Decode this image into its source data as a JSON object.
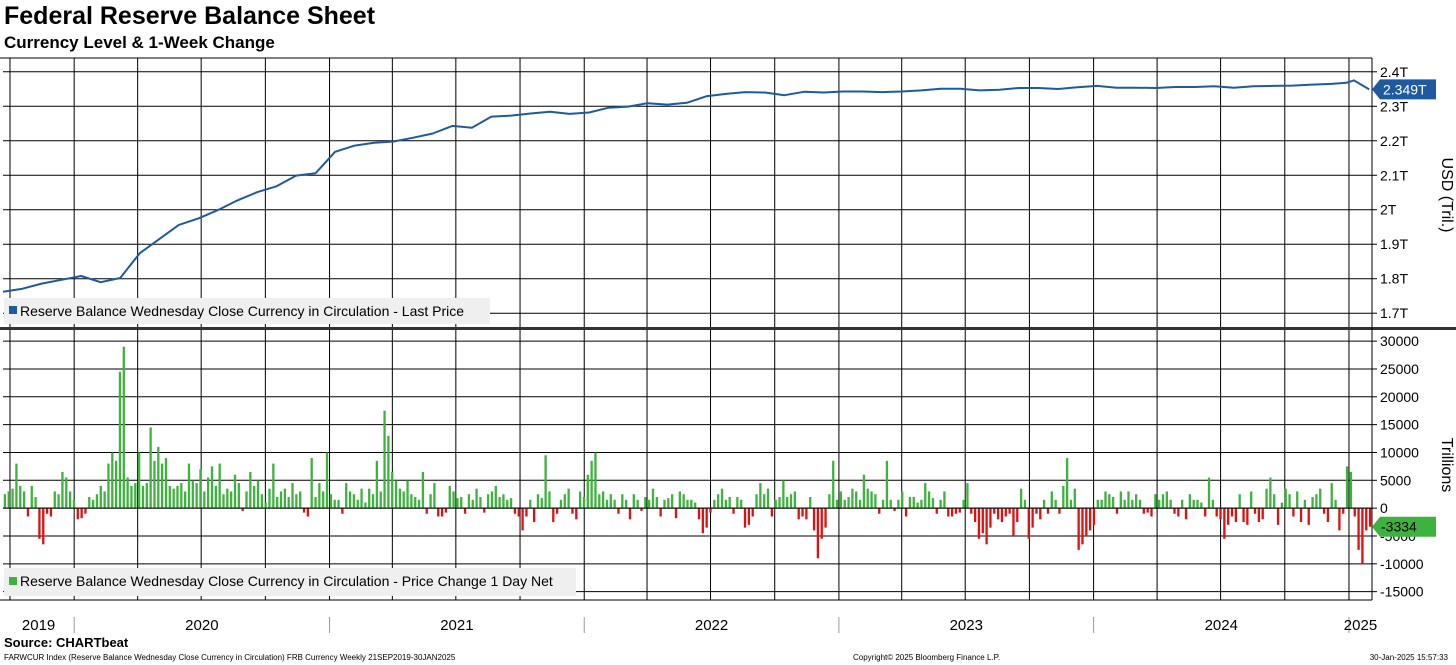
{
  "title": "Federal Reserve Balance Sheet",
  "subtitle": "Currency Level & 1-Week Change",
  "source": "Source: CHARTbeat",
  "footer": {
    "left": "FARWCUR Index (Reserve Balance Wednesday Close Currency in Circulation) FRB Currency  Weekly 21SEP2019-30JAN2025",
    "center": "Copyright© 2025 Bloomberg Finance L.P.",
    "right": "30-Jan-2025 15:57:33"
  },
  "colors": {
    "line": "#1f5aa0",
    "positive": "#3db33d",
    "negative": "#e01010",
    "grid": "#000000",
    "legend_bg": "#efefef"
  },
  "chart_data": [
    {
      "type": "line",
      "ylabel": "USD (Tril.)",
      "ylim": [
        1.66,
        2.44
      ],
      "yticks": [
        1.7,
        1.8,
        1.9,
        2.0,
        2.1,
        2.2,
        2.3,
        2.4
      ],
      "ytick_labels": [
        "1.7T",
        "1.8T",
        "1.9T",
        "2T",
        "2.1T",
        "2.2T",
        "2.3T",
        "2.4T"
      ],
      "last_value_label": "2.349T",
      "legend_position": "bottom-left",
      "grid": true,
      "series": [
        {
          "name": "Reserve Balance Wednesday Close Currency in Circulation - Last Price",
          "x": [
            "2019-09-21",
            "2019-10-19",
            "2019-11-16",
            "2019-12-14",
            "2020-01-11",
            "2020-02-08",
            "2020-03-07",
            "2020-04-04",
            "2020-05-02",
            "2020-05-30",
            "2020-06-27",
            "2020-07-25",
            "2020-08-22",
            "2020-09-19",
            "2020-10-17",
            "2020-11-14",
            "2020-12-12",
            "2021-01-09",
            "2021-02-06",
            "2021-03-06",
            "2021-04-03",
            "2021-05-01",
            "2021-05-29",
            "2021-06-26",
            "2021-07-24",
            "2021-08-21",
            "2021-09-18",
            "2021-10-16",
            "2021-11-13",
            "2021-12-11",
            "2022-01-08",
            "2022-02-05",
            "2022-03-05",
            "2022-04-02",
            "2022-04-30",
            "2022-05-28",
            "2022-06-25",
            "2022-07-23",
            "2022-08-20",
            "2022-09-17",
            "2022-10-15",
            "2022-11-12",
            "2022-12-10",
            "2023-01-07",
            "2023-02-04",
            "2023-03-04",
            "2023-04-01",
            "2023-04-29",
            "2023-05-27",
            "2023-06-24",
            "2023-07-22",
            "2023-08-19",
            "2023-09-16",
            "2023-10-14",
            "2023-11-11",
            "2023-12-09",
            "2024-01-06",
            "2024-02-03",
            "2024-03-02",
            "2024-03-30",
            "2024-04-27",
            "2024-05-25",
            "2024-06-22",
            "2024-07-20",
            "2024-08-17",
            "2024-09-14",
            "2024-10-12",
            "2024-11-09",
            "2024-12-07",
            "2024-12-28",
            "2025-01-08",
            "2025-01-30"
          ],
          "values": [
            1.762,
            1.771,
            1.786,
            1.797,
            1.808,
            1.79,
            1.802,
            1.874,
            1.915,
            1.956,
            1.975,
            1.999,
            2.027,
            2.051,
            2.068,
            2.099,
            2.106,
            2.168,
            2.186,
            2.194,
            2.198,
            2.209,
            2.221,
            2.243,
            2.238,
            2.27,
            2.273,
            2.279,
            2.284,
            2.278,
            2.282,
            2.296,
            2.299,
            2.309,
            2.305,
            2.31,
            2.329,
            2.336,
            2.341,
            2.34,
            2.332,
            2.342,
            2.34,
            2.343,
            2.343,
            2.341,
            2.343,
            2.346,
            2.351,
            2.351,
            2.346,
            2.348,
            2.353,
            2.353,
            2.35,
            2.355,
            2.359,
            2.354,
            2.354,
            2.353,
            2.356,
            2.356,
            2.358,
            2.354,
            2.358,
            2.359,
            2.36,
            2.363,
            2.365,
            2.368,
            2.375,
            2.349
          ]
        }
      ]
    },
    {
      "type": "bar",
      "ylabel": "Trillions",
      "ylim": [
        -16500,
        32000
      ],
      "yticks": [
        -15000,
        -10000,
        -5000,
        0,
        5000,
        10000,
        15000,
        20000,
        25000,
        30000
      ],
      "ytick_labels": [
        "-15000",
        "-10000",
        "-5000",
        "0",
        "5000",
        "10000",
        "15000",
        "20000",
        "25000",
        "30000"
      ],
      "last_value_label": "-3334",
      "legend_position": "bottom-left",
      "grid": true,
      "series": [
        {
          "name": "Reserve Balance Wednesday Close Currency in Circulation - Price Change 1 Day Net",
          "x_start": "2019-09-21",
          "frequency": "weekly",
          "values": [
            2500,
            3000,
            3500,
            8000,
            4000,
            3000,
            -1500,
            4000,
            2000,
            -5500,
            -6500,
            -1000,
            -1500,
            3000,
            2500,
            6500,
            5500,
            3000,
            1500,
            -2000,
            -1800,
            -1000,
            2000,
            1500,
            2500,
            4000,
            3000,
            8000,
            10000,
            8500,
            24500,
            29000,
            5500,
            4000,
            4500,
            10000,
            4000,
            4500,
            14500,
            8500,
            11000,
            8000,
            9000,
            4000,
            3500,
            4000,
            4500,
            3000,
            8000,
            5000,
            4500,
            7000,
            3000,
            5500,
            7500,
            4000,
            8000,
            2500,
            3500,
            3000,
            6000,
            4500,
            -500,
            3000,
            6500,
            4000,
            5000,
            2500,
            1000,
            3500,
            8000,
            2000,
            3000,
            3500,
            2000,
            4500,
            2500,
            3000,
            -800,
            -1500,
            9000,
            2000,
            4500,
            3000,
            10000,
            2500,
            1500,
            1500,
            -1000,
            4500,
            3000,
            2500,
            1500,
            3500,
            1000,
            3500,
            2500,
            8500,
            3000,
            17500,
            13000,
            6500,
            5000,
            3500,
            3000,
            5000,
            2500,
            2000,
            1500,
            6500,
            -1000,
            2500,
            4500,
            -1500,
            -1500,
            -800,
            4000,
            3000,
            1800,
            2000,
            -1000,
            2500,
            1500,
            3500,
            2000,
            -800,
            2500,
            3000,
            4000,
            2000,
            2500,
            1500,
            1800,
            -1000,
            -1500,
            -4000,
            -1500,
            1500,
            -2500,
            2500,
            1800,
            9500,
            3000,
            -2500,
            -1000,
            1500,
            2500,
            3500,
            -1000,
            -2000,
            3000,
            2000,
            6000,
            8500,
            10000,
            2500,
            3000,
            1500,
            2500,
            1500,
            -1000,
            2500,
            1500,
            -2000,
            2500,
            1500,
            -500,
            2000,
            1500,
            3500,
            2000,
            -1500,
            1500,
            1800,
            2500,
            -1800,
            3000,
            2500,
            1500,
            1500,
            1000,
            -2000,
            -4500,
            -3500,
            -800,
            1500,
            2500,
            3500,
            1500,
            2000,
            -1000,
            2000,
            1500,
            -3500,
            -3000,
            -1500,
            2500,
            4500,
            2500,
            3500,
            -1500,
            1500,
            2000,
            5000,
            2000,
            2500,
            3000,
            -2000,
            -1500,
            -2000,
            2000,
            -4000,
            -9000,
            -5500,
            -3500,
            2500,
            8500,
            1500,
            3000,
            1500,
            2000,
            3500,
            3000,
            1500,
            6000,
            3500,
            3000,
            2500,
            -1000,
            1500,
            8500,
            1500,
            -500,
            1500,
            3000,
            -1500,
            2000,
            2000,
            1000,
            1500,
            4500,
            3000,
            1800,
            -1000,
            1500,
            3000,
            -1500,
            -1500,
            -1000,
            -800,
            1500,
            4500,
            -1000,
            -2500,
            -5500,
            -4500,
            -6500,
            -3500,
            -1000,
            -2000,
            -2500,
            -1500,
            -1000,
            -5000,
            -2500,
            3500,
            1500,
            -5500,
            -3500,
            -1000,
            -2000,
            1500,
            -1000,
            3000,
            1500,
            -1000,
            4000,
            9000,
            1500,
            3500,
            -7500,
            -6500,
            -5000,
            -4000,
            -3000,
            1500,
            1500,
            3000,
            2500,
            2000,
            -1000,
            3000,
            1500,
            3000,
            1500,
            2500,
            1500,
            -1000,
            -800,
            -1500,
            2500,
            1500,
            2500,
            3000,
            1500,
            -1000,
            -1500,
            1500,
            -2000,
            2500,
            1500,
            1500,
            1000,
            -1500,
            5500,
            1500,
            -1500,
            -2000,
            -5500,
            -3000,
            -1500,
            -2500,
            2500,
            -2500,
            -3000,
            3000,
            -1000,
            -2500,
            -2000,
            3500,
            5500,
            2500,
            -3000,
            1000,
            3500,
            2500,
            -1500,
            3000,
            -2500,
            1500,
            -3000,
            2000,
            2500,
            3500,
            -1000,
            -2500,
            4500,
            1500,
            -4000,
            -1000,
            7500,
            6500,
            -1500,
            -7500,
            -10000,
            -4000,
            -3334
          ]
        }
      ],
      "x_axis": {
        "tick_labels": [
          "2019",
          "2020",
          "2021",
          "2022",
          "2023",
          "2024",
          "2025"
        ]
      }
    }
  ]
}
